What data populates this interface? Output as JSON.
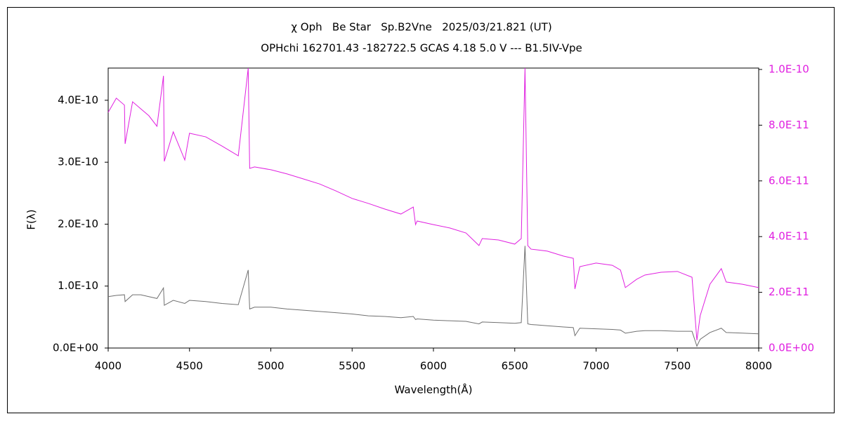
{
  "chart_data": {
    "type": "line",
    "title": "χ Oph   Be Star   Sp.B2Vne   2025/03/21.821 (UT)",
    "subtitle": "OPHchi 162701.43 -182722.5 GCAS 4.18 5.0 V --- B1.5IV-Vpe",
    "x_label": "Wavelength(Å)",
    "y_label": "F(λ)",
    "xlim": [
      4000,
      8000
    ],
    "xticks": [
      4000,
      4500,
      5000,
      5500,
      6000,
      6500,
      7000,
      7500,
      8000
    ],
    "ylim": [
      0,
      4.52e-10
    ],
    "yticks": [
      {
        "value": 0,
        "label": "0.0E+00"
      },
      {
        "value": 1e-10,
        "label": "1.0E-10"
      },
      {
        "value": 2e-10,
        "label": "2.0E-10"
      },
      {
        "value": 3e-10,
        "label": "3.0E-10"
      },
      {
        "value": 4e-10,
        "label": "4.0E-10"
      }
    ],
    "y2lim": [
      0,
      1.005e-10
    ],
    "y2ticks": [
      {
        "value": 0,
        "label": "0.0E+00"
      },
      {
        "value": 2e-11,
        "label": "2.0E-11"
      },
      {
        "value": 4e-11,
        "label": "4.0E-11"
      },
      {
        "value": 6e-11,
        "label": "6.0E-11"
      },
      {
        "value": 8e-11,
        "label": "8.0E-11"
      },
      {
        "value": 1e-10,
        "label": "1.0E-10"
      }
    ],
    "y2_color": "#e020e0",
    "grid": false,
    "x": [
      4000,
      4050,
      4100,
      4104,
      4150,
      4200,
      4250,
      4300,
      4340,
      4345,
      4400,
      4471,
      4500,
      4600,
      4700,
      4800,
      4861,
      4870,
      4900,
      5000,
      5100,
      5200,
      5300,
      5400,
      5500,
      5600,
      5700,
      5800,
      5876,
      5890,
      5900,
      6000,
      6100,
      6200,
      6280,
      6300,
      6400,
      6500,
      6540,
      6563,
      6580,
      6600,
      6700,
      6800,
      6860,
      6870,
      6900,
      7000,
      7100,
      7150,
      7180,
      7250,
      7300,
      7400,
      7500,
      7590,
      7620,
      7640,
      7700,
      7770,
      7800,
      7900,
      8000
    ],
    "series": [
      {
        "color": "#707070",
        "axis": "y",
        "values": [
          8.3e-11,
          8.5e-11,
          8.6e-11,
          7.5e-11,
          8.6e-11,
          8.6e-11,
          8.3e-11,
          8e-11,
          9.7e-11,
          6.9e-11,
          7.7e-11,
          7.2e-11,
          7.7e-11,
          7.5e-11,
          7.2e-11,
          7e-11,
          1.26e-10,
          6.3e-11,
          6.6e-11,
          6.6e-11,
          6.3e-11,
          6.1e-11,
          5.9e-11,
          5.7e-11,
          5.5e-11,
          5.2e-11,
          5.1e-11,
          4.9e-11,
          5.1e-11,
          4.6e-11,
          4.7e-11,
          4.5e-11,
          4.4e-11,
          4.3e-11,
          3.9e-11,
          4.2e-11,
          4.1e-11,
          4e-11,
          4.1e-11,
          1.65e-10,
          3.9e-11,
          3.8e-11,
          3.6e-11,
          3.4e-11,
          3.3e-11,
          2e-11,
          3.2e-11,
          3.1e-11,
          3e-11,
          2.9e-11,
          2.4e-11,
          2.7e-11,
          2.8e-11,
          2.8e-11,
          2.7e-11,
          2.7e-11,
          3e-12,
          1.4e-11,
          2.5e-11,
          3.2e-11,
          2.5e-11,
          2.4e-11,
          2.3e-11
        ]
      },
      {
        "color": "#e020e0",
        "axis": "y2",
        "values": [
          8.46e-11,
          8.97e-11,
          8.72e-11,
          7.33e-11,
          8.84e-11,
          8.59e-11,
          8.34e-11,
          7.96e-11,
          9.77e-11,
          6.7e-11,
          7.76e-11,
          6.75e-11,
          7.71e-11,
          7.58e-11,
          7.25e-11,
          6.9e-11,
          1.005e-10,
          6.45e-11,
          6.5e-11,
          6.4e-11,
          6.25e-11,
          6.07e-11,
          5.89e-11,
          5.64e-11,
          5.37e-11,
          5.19e-11,
          4.99e-11,
          4.81e-11,
          5.06e-11,
          4.43e-11,
          4.56e-11,
          4.43e-11,
          4.31e-11,
          4.13e-11,
          3.68e-11,
          3.93e-11,
          3.88e-11,
          3.73e-11,
          3.93e-11,
          1.005e-10,
          3.68e-11,
          3.55e-11,
          3.48e-11,
          3.3e-11,
          3.22e-11,
          2.12e-11,
          2.92e-11,
          3.05e-11,
          2.97e-11,
          2.8e-11,
          2.17e-11,
          2.47e-11,
          2.62e-11,
          2.72e-11,
          2.75e-11,
          2.54e-11,
          2.8e-12,
          1.16e-11,
          2.29e-11,
          2.85e-11,
          2.37e-11,
          2.29e-11,
          2.17e-11
        ]
      }
    ]
  }
}
